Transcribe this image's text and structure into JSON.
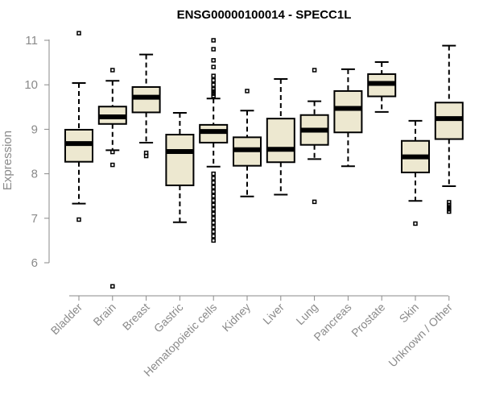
{
  "chart_data": {
    "type": "boxplot",
    "title": "ENSG00000100014 - SPECC1L",
    "xlabel": "",
    "ylabel": "Expression",
    "ylim": [
      5.4,
      11.2
    ],
    "yticks": [
      6,
      7,
      8,
      9,
      10,
      11
    ],
    "box_color": "#ede8d0",
    "categories": [
      "Bladder",
      "Brain",
      "Breast",
      "Gastric",
      "Hematopoietic cells",
      "Kidney",
      "Liver",
      "Lung",
      "Pancreas",
      "Prostate",
      "Skin",
      "Unknown / Other"
    ],
    "boxes": [
      {
        "name": "Bladder",
        "whisker_low": 7.33,
        "q1": 8.27,
        "median": 8.68,
        "q3": 8.99,
        "whisker_high": 10.04,
        "outliers": [
          11.16,
          6.97
        ]
      },
      {
        "name": "Brain",
        "whisker_low": 8.53,
        "q1": 9.12,
        "median": 9.28,
        "q3": 9.51,
        "whisker_high": 10.09,
        "outliers": [
          10.33,
          8.49,
          8.2,
          5.47
        ]
      },
      {
        "name": "Breast",
        "whisker_low": 8.7,
        "q1": 9.38,
        "median": 9.72,
        "q3": 9.95,
        "whisker_high": 10.68,
        "outliers": [
          8.47,
          8.4
        ]
      },
      {
        "name": "Gastric",
        "whisker_low": 6.91,
        "q1": 7.74,
        "median": 8.5,
        "q3": 8.88,
        "whisker_high": 9.37,
        "outliers": []
      },
      {
        "name": "Hematopoietic cells",
        "whisker_low": 8.16,
        "q1": 8.7,
        "median": 8.95,
        "q3": 9.1,
        "whisker_high": 9.69,
        "outliers": [
          11.0,
          10.8,
          10.55,
          10.4,
          10.2,
          10.1,
          10.0,
          9.9,
          9.85,
          9.8,
          9.75,
          8.0,
          7.9,
          7.8,
          7.7,
          7.6,
          7.5,
          7.4,
          7.3,
          7.2,
          7.1,
          7.0,
          6.9,
          6.8,
          6.7,
          6.6,
          6.5
        ]
      },
      {
        "name": "Kidney",
        "whisker_low": 7.49,
        "q1": 8.18,
        "median": 8.54,
        "q3": 8.82,
        "whisker_high": 9.42,
        "outliers": [
          9.86
        ]
      },
      {
        "name": "Liver",
        "whisker_low": 7.53,
        "q1": 8.26,
        "median": 8.55,
        "q3": 9.24,
        "whisker_high": 10.13,
        "outliers": []
      },
      {
        "name": "Lung",
        "whisker_low": 8.33,
        "q1": 8.65,
        "median": 8.98,
        "q3": 9.32,
        "whisker_high": 9.63,
        "outliers": [
          10.33,
          7.37
        ]
      },
      {
        "name": "Pancreas",
        "whisker_low": 8.17,
        "q1": 8.93,
        "median": 9.47,
        "q3": 9.86,
        "whisker_high": 10.35,
        "outliers": []
      },
      {
        "name": "Prostate",
        "whisker_low": 9.39,
        "q1": 9.74,
        "median": 10.03,
        "q3": 10.24,
        "whisker_high": 10.51,
        "outliers": []
      },
      {
        "name": "Skin",
        "whisker_low": 7.39,
        "q1": 8.03,
        "median": 8.38,
        "q3": 8.74,
        "whisker_high": 9.19,
        "outliers": [
          6.88
        ]
      },
      {
        "name": "Unknown / Other",
        "whisker_low": 7.72,
        "q1": 8.78,
        "median": 9.24,
        "q3": 9.6,
        "whisker_high": 10.88,
        "outliers": [
          7.36,
          7.3,
          7.25,
          7.2,
          7.15
        ]
      }
    ]
  }
}
